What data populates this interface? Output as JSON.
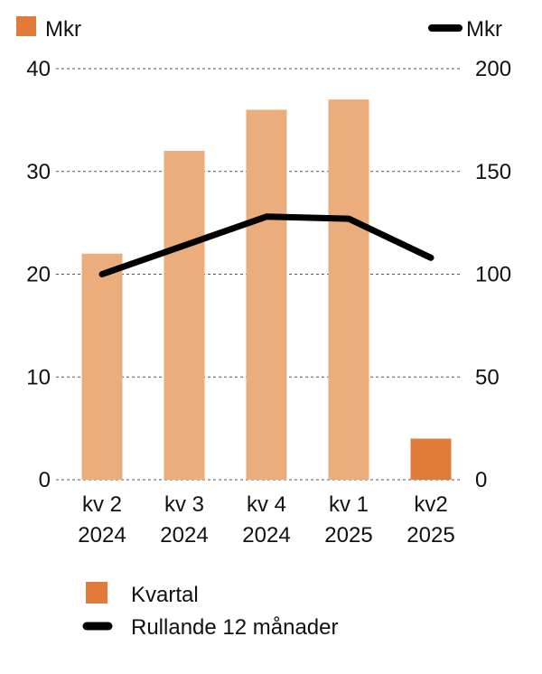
{
  "colors": {
    "bar_light": "#ebad7c",
    "bar_highlight": "#e07b39",
    "line": "#000000",
    "grid": "#555555"
  },
  "chart_data": {
    "type": "bar",
    "categories": [
      [
        "kv 2",
        "2024"
      ],
      [
        "kv 3",
        "2024"
      ],
      [
        "kv 4",
        "2024"
      ],
      [
        "kv 1",
        "2025"
      ],
      [
        "kv2",
        "2025"
      ]
    ],
    "left_unit": "Mkr",
    "right_unit": "Mkr",
    "ylim_left": [
      0,
      40
    ],
    "yticks_left": [
      "0",
      "10",
      "20",
      "30",
      "40"
    ],
    "ylim_right": [
      0,
      200
    ],
    "yticks_right": [
      "0",
      "50",
      "100",
      "150",
      "200"
    ],
    "grid": true,
    "series": [
      {
        "name": "Kvartal",
        "type": "bar",
        "axis": "left",
        "values": [
          22,
          32,
          36,
          37,
          4
        ],
        "highlight_index": 4
      },
      {
        "name": "Rullande 12 månader",
        "type": "line",
        "axis": "right",
        "values": [
          100,
          114,
          128,
          127,
          108
        ]
      }
    ],
    "legend_position": "bottom-left"
  }
}
